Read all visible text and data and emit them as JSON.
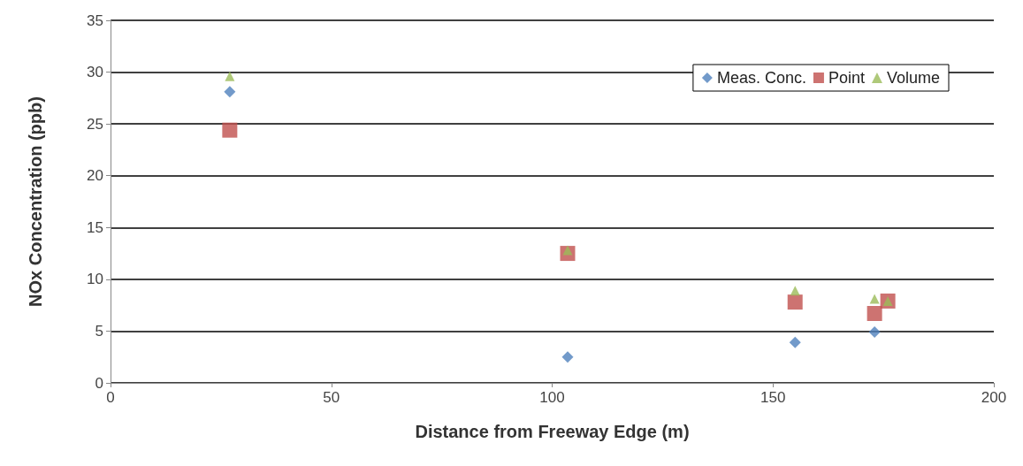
{
  "chart_data": {
    "type": "scatter",
    "xlabel": "Distance from Freeway Edge (m)",
    "ylabel": "NOx Concentration (ppb)",
    "xlim": [
      0,
      200
    ],
    "xticks": [
      0,
      50,
      100,
      150,
      200
    ],
    "ylim": [
      0,
      35
    ],
    "yticks": [
      0,
      5,
      10,
      15,
      20,
      25,
      30,
      35
    ],
    "grid": "y",
    "legend": "top right",
    "series": [
      {
        "name": "Meas. Conc.",
        "color": "#4f81bd",
        "marker": "diamond",
        "x": [
          27,
          103.5,
          155,
          173
        ],
        "values": [
          28.1,
          2.5,
          3.9,
          4.9
        ]
      },
      {
        "name": "Point",
        "color": "#c0504d",
        "marker": "square",
        "x": [
          27,
          103.5,
          155,
          173,
          176
        ],
        "values": [
          24.4,
          12.5,
          7.8,
          6.7,
          7.9
        ]
      },
      {
        "name": "Volume",
        "color": "#9bbb59",
        "marker": "triangle",
        "x": [
          27,
          103.5,
          155,
          173,
          176
        ],
        "values": [
          29.6,
          12.8,
          8.9,
          8.1,
          7.9
        ]
      }
    ]
  }
}
